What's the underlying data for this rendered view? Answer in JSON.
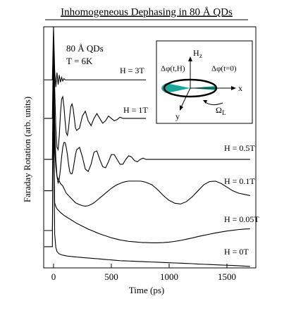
{
  "chart_data": {
    "type": "line",
    "title": "Inhomogeneous Dephasing in 80 Å QDs",
    "x_label": "Time (ps)",
    "y_label": "Faraday Rotation (arb. units)",
    "annotations": [
      "80 Å QDs",
      "T = 6K"
    ],
    "inset_labels": [
      "H",
      "z",
      "Δφ(t,H)",
      "Δφ(t=0)",
      "x",
      "y",
      "Ω",
      "L"
    ],
    "xlim": [
      -85,
      1750
    ],
    "xticks": [
      0,
      500,
      1000,
      1500
    ],
    "ylim": [
      0,
      100
    ],
    "x": [
      -80,
      -40,
      -10,
      0,
      10,
      20,
      30,
      40,
      50,
      60,
      70,
      80,
      90,
      100,
      110,
      120,
      130,
      140,
      150,
      160,
      170,
      180,
      190,
      200,
      225,
      250,
      275,
      300,
      325,
      350,
      375,
      400,
      425,
      450,
      475,
      500,
      525,
      550,
      575,
      600,
      625,
      650,
      675,
      700,
      725,
      750,
      775,
      800,
      850,
      900,
      950,
      1000,
      1050,
      1100,
      1150,
      1200,
      1250,
      1300,
      1350,
      1400,
      1450,
      1500,
      1550,
      1600,
      1650,
      1700
    ],
    "series": [
      {
        "name": "H = 3T",
        "color": "#000000",
        "values": [
          78,
          78,
          78,
          100,
          82,
          75,
          81,
          76,
          80,
          77,
          79,
          77.5,
          78.5,
          78,
          78,
          78,
          78,
          78,
          78,
          78,
          78,
          78,
          78,
          78,
          78,
          78,
          78,
          78,
          78,
          78,
          78,
          78,
          78,
          78,
          78,
          78,
          78,
          78,
          78,
          78,
          78,
          78,
          78,
          78,
          78,
          78,
          78,
          78,
          null,
          null,
          null,
          null,
          null,
          null,
          null,
          null,
          null,
          null,
          null,
          null,
          null,
          null,
          null,
          null,
          null,
          null
        ]
      },
      {
        "name": "H = 1T",
        "color": "#000000",
        "values": [
          62,
          62,
          62,
          95,
          75,
          58,
          50,
          49,
          55,
          64,
          70,
          71,
          67,
          61,
          56,
          55,
          58,
          63,
          67,
          68,
          66,
          62,
          58,
          57,
          58,
          63,
          65,
          61,
          59,
          62,
          64,
          62,
          60,
          61,
          63,
          62,
          61,
          61.5,
          62.5,
          62,
          62,
          62,
          62,
          62,
          62,
          62,
          62,
          62,
          null,
          null,
          null,
          null,
          null,
          null,
          null,
          null,
          null,
          null,
          null,
          null,
          null,
          null,
          null,
          null,
          null,
          null
        ]
      },
      {
        "name": "H = 0.5T",
        "color": "#000000",
        "values": [
          45,
          45,
          45,
          92,
          60,
          45,
          38,
          35,
          37,
          41,
          46,
          50,
          52,
          52,
          50,
          47,
          43,
          40,
          39,
          39,
          41,
          44,
          47,
          49,
          50,
          46,
          41,
          40,
          43,
          48,
          48.5,
          45,
          42,
          41.5,
          44,
          47,
          47,
          45,
          43,
          43,
          45,
          46.5,
          46,
          44.5,
          44,
          45,
          45.5,
          45,
          45,
          45,
          45,
          45,
          45,
          45,
          45,
          45,
          45,
          45,
          45,
          45,
          45,
          45,
          45,
          45,
          45,
          45
        ]
      },
      {
        "name": "H = 0.1T",
        "color": "#000000",
        "values": [
          32,
          32,
          32,
          88,
          50,
          42,
          38,
          37,
          36,
          35,
          34.5,
          34,
          33,
          32,
          31,
          30.5,
          30,
          29.5,
          29,
          28.5,
          28,
          27.5,
          27,
          26.8,
          26.2,
          25.8,
          25.6,
          25.8,
          26.3,
          27,
          28,
          29,
          30,
          31,
          32,
          33,
          33.8,
          34.5,
          35,
          35.5,
          35.8,
          36,
          36,
          36,
          36,
          36,
          35.8,
          35.5,
          34.5,
          32.5,
          30,
          28,
          26.8,
          26.5,
          27.5,
          29.5,
          32,
          34.5,
          35.8,
          36,
          35,
          33.5,
          32,
          31,
          30.5,
          30
        ]
      },
      {
        "name": "H = 0.05T",
        "color": "#000000",
        "values": [
          15.5,
          15.5,
          15.5,
          70,
          27,
          25.5,
          24.5,
          24,
          23.5,
          23,
          22.6,
          22.2,
          21.8,
          21.5,
          21.2,
          20.9,
          20.6,
          20.3,
          20,
          19.7,
          19.4,
          19.1,
          18.8,
          18.5,
          17.9,
          17.3,
          16.7,
          16.1,
          15.6,
          15.1,
          14.6,
          14.1,
          13.7,
          13.3,
          12.9,
          12.5,
          12.2,
          11.9,
          11.6,
          11.4,
          11.2,
          11,
          10.9,
          10.8,
          10.7,
          10.6,
          10.5,
          10.5,
          10.4,
          10.4,
          10.5,
          10.7,
          11,
          11.4,
          11.9,
          12.4,
          13,
          13.5,
          14,
          14.5,
          14.9,
          15.3,
          15.6,
          15.9,
          16.1,
          16.2
        ]
      },
      {
        "name": "H = 0T",
        "color": "#000000",
        "values": [
          8.8,
          8.8,
          8.8,
          72,
          14,
          8.5,
          6.8,
          6.2,
          5.8,
          5.6,
          5.4,
          5.3,
          5.2,
          5.1,
          5,
          4.9,
          4.85,
          4.8,
          4.75,
          4.7,
          4.65,
          4.6,
          4.55,
          4.5,
          4.4,
          4.3,
          4.2,
          4.1,
          4,
          3.9,
          3.8,
          3.7,
          3.6,
          3.5,
          3.4,
          3.3,
          3.2,
          3.1,
          3,
          2.95,
          2.9,
          2.85,
          2.8,
          2.75,
          2.7,
          2.65,
          2.6,
          2.55,
          2.45,
          2.35,
          2.25,
          2.15,
          2.05,
          1.95,
          1.85,
          1.75,
          1.6,
          1.5,
          1.4,
          1.3,
          1.2,
          1.1,
          1,
          0.9,
          0.75,
          0.6
        ]
      }
    ]
  }
}
